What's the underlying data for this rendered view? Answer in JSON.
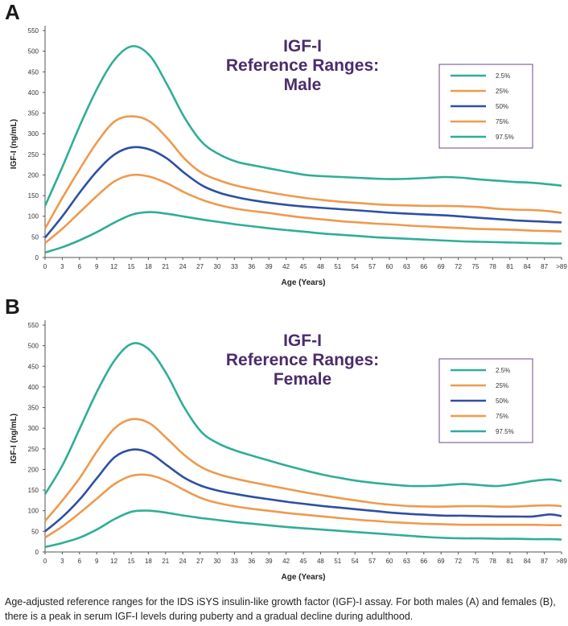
{
  "chart_data": [
    {
      "panel_label": "A",
      "type": "line",
      "title": [
        "IGF-I",
        "Reference Ranges:",
        "Male"
      ],
      "xlabel": "Age (Years)",
      "ylabel": "IGF-I (ng/mL)",
      "xlim": [
        0,
        89
      ],
      "ylim": [
        0,
        550
      ],
      "x_ticks": [
        "0",
        "3",
        "6",
        "9",
        "12",
        "15",
        "18",
        "21",
        "24",
        "27",
        "30",
        "33",
        "36",
        "39",
        "42",
        "45",
        "48",
        "51",
        "54",
        "57",
        "60",
        "63",
        "66",
        "69",
        "72",
        "75",
        "78",
        "81",
        "84",
        "87",
        ">89"
      ],
      "y_ticks": [
        0,
        50,
        100,
        150,
        200,
        250,
        300,
        350,
        400,
        450,
        500,
        550
      ],
      "grid": false,
      "legend_position": "top-right",
      "series": [
        {
          "name": "2.5%",
          "color": "#2fae96",
          "x": [
            0,
            3,
            6,
            9,
            12,
            15,
            18,
            21,
            24,
            27,
            30,
            33,
            36,
            39,
            42,
            45,
            48,
            51,
            54,
            57,
            60,
            63,
            66,
            69,
            72,
            75,
            78,
            81,
            84,
            87,
            89
          ],
          "y": [
            12,
            25,
            42,
            62,
            85,
            104,
            110,
            106,
            99,
            92,
            86,
            80,
            75,
            70,
            66,
            62,
            58,
            55,
            52,
            49,
            47,
            45,
            43,
            41,
            39,
            38,
            37,
            36,
            35,
            34,
            34
          ]
        },
        {
          "name": "25%",
          "color": "#ee9a4d",
          "x": [
            0,
            3,
            6,
            9,
            12,
            15,
            18,
            21,
            24,
            27,
            30,
            33,
            36,
            39,
            42,
            45,
            48,
            51,
            54,
            57,
            60,
            63,
            66,
            69,
            72,
            75,
            78,
            81,
            84,
            87,
            89
          ],
          "y": [
            35,
            70,
            110,
            150,
            185,
            200,
            196,
            180,
            158,
            140,
            127,
            118,
            112,
            107,
            101,
            96,
            92,
            88,
            85,
            82,
            80,
            77,
            75,
            73,
            71,
            69,
            68,
            67,
            65,
            64,
            63
          ]
        },
        {
          "name": "50%",
          "color": "#2e4fa3",
          "x": [
            0,
            3,
            6,
            9,
            12,
            15,
            18,
            21,
            24,
            27,
            30,
            33,
            36,
            39,
            42,
            45,
            48,
            51,
            54,
            57,
            60,
            63,
            66,
            69,
            72,
            75,
            78,
            81,
            84,
            87,
            89
          ],
          "y": [
            48,
            100,
            158,
            210,
            250,
            267,
            262,
            240,
            205,
            175,
            157,
            146,
            138,
            132,
            127,
            123,
            120,
            117,
            114,
            111,
            108,
            106,
            104,
            102,
            99,
            96,
            93,
            90,
            88,
            86,
            85
          ]
        },
        {
          "name": "75%",
          "color": "#ee9a4d",
          "x": [
            0,
            3,
            6,
            9,
            12,
            15,
            18,
            21,
            24,
            27,
            30,
            33,
            36,
            39,
            42,
            45,
            48,
            51,
            54,
            57,
            60,
            63,
            66,
            69,
            72,
            75,
            78,
            81,
            84,
            87,
            89
          ],
          "y": [
            70,
            145,
            215,
            280,
            330,
            342,
            330,
            290,
            240,
            205,
            187,
            174,
            165,
            157,
            150,
            144,
            139,
            135,
            132,
            129,
            127,
            126,
            125,
            125,
            124,
            122,
            118,
            116,
            115,
            112,
            108
          ]
        },
        {
          "name": "97.5%",
          "color": "#2fae96",
          "x": [
            0,
            3,
            6,
            9,
            12,
            15,
            18,
            21,
            24,
            27,
            30,
            33,
            36,
            39,
            42,
            45,
            48,
            51,
            54,
            57,
            60,
            63,
            66,
            69,
            72,
            75,
            78,
            81,
            84,
            87,
            89
          ],
          "y": [
            125,
            220,
            320,
            410,
            480,
            512,
            490,
            420,
            340,
            280,
            250,
            232,
            223,
            215,
            207,
            200,
            197,
            195,
            193,
            191,
            190,
            191,
            193,
            195,
            193,
            189,
            186,
            183,
            181,
            177,
            174
          ]
        }
      ]
    },
    {
      "panel_label": "B",
      "type": "line",
      "title": [
        "IGF-I",
        "Reference Ranges:",
        "Female"
      ],
      "xlabel": "Age (Years)",
      "ylabel": "IGF-I (ng/mL)",
      "xlim": [
        0,
        89
      ],
      "ylim": [
        0,
        550
      ],
      "x_ticks": [
        "0",
        "3",
        "6",
        "9",
        "12",
        "15",
        "18",
        "21",
        "24",
        "27",
        "30",
        "33",
        "36",
        "39",
        "42",
        "45",
        "48",
        "51",
        "54",
        "57",
        "60",
        "63",
        "66",
        "69",
        "72",
        "75",
        "78",
        "81",
        "84",
        "87",
        ">89"
      ],
      "y_ticks": [
        0,
        50,
        100,
        150,
        200,
        250,
        300,
        350,
        400,
        450,
        500,
        550
      ],
      "grid": false,
      "legend_position": "top-right",
      "series": [
        {
          "name": "2.5%",
          "color": "#2fae96",
          "x": [
            0,
            3,
            6,
            9,
            12,
            15,
            18,
            21,
            24,
            27,
            30,
            33,
            36,
            39,
            42,
            45,
            48,
            51,
            54,
            57,
            60,
            63,
            66,
            69,
            72,
            75,
            78,
            81,
            84,
            87,
            89
          ],
          "y": [
            12,
            22,
            35,
            55,
            80,
            98,
            100,
            95,
            88,
            82,
            77,
            72,
            68,
            64,
            60,
            57,
            54,
            51,
            48,
            45,
            42,
            39,
            36,
            34,
            33,
            33,
            32,
            32,
            31,
            31,
            30
          ]
        },
        {
          "name": "25%",
          "color": "#ee9a4d",
          "x": [
            0,
            3,
            6,
            9,
            12,
            15,
            18,
            21,
            24,
            27,
            30,
            33,
            36,
            39,
            42,
            45,
            48,
            51,
            54,
            57,
            60,
            63,
            66,
            69,
            72,
            75,
            78,
            81,
            84,
            87,
            89
          ],
          "y": [
            35,
            62,
            95,
            130,
            165,
            185,
            186,
            172,
            150,
            130,
            118,
            110,
            104,
            99,
            94,
            90,
            86,
            82,
            78,
            75,
            72,
            70,
            68,
            67,
            66,
            66,
            66,
            66,
            66,
            65,
            65
          ]
        },
        {
          "name": "50%",
          "color": "#2e4fa3",
          "x": [
            0,
            3,
            6,
            9,
            12,
            15,
            18,
            21,
            24,
            27,
            30,
            33,
            36,
            39,
            42,
            45,
            48,
            51,
            54,
            57,
            60,
            63,
            66,
            69,
            72,
            75,
            78,
            81,
            84,
            87,
            89
          ],
          "y": [
            50,
            85,
            128,
            180,
            230,
            248,
            240,
            210,
            180,
            160,
            148,
            140,
            133,
            127,
            121,
            116,
            111,
            107,
            103,
            99,
            95,
            92,
            90,
            88,
            88,
            87,
            86,
            86,
            86,
            91,
            87
          ]
        },
        {
          "name": "75%",
          "color": "#ee9a4d",
          "x": [
            0,
            3,
            6,
            9,
            12,
            15,
            18,
            21,
            24,
            27,
            30,
            33,
            36,
            39,
            42,
            45,
            48,
            51,
            54,
            57,
            60,
            63,
            66,
            69,
            72,
            75,
            78,
            81,
            84,
            87,
            89
          ],
          "y": [
            75,
            125,
            180,
            245,
            300,
            322,
            312,
            275,
            235,
            205,
            188,
            177,
            168,
            160,
            152,
            144,
            137,
            130,
            124,
            118,
            114,
            111,
            110,
            110,
            111,
            111,
            110,
            110,
            112,
            113,
            111
          ]
        },
        {
          "name": "97.5%",
          "color": "#2fae96",
          "x": [
            0,
            3,
            6,
            9,
            12,
            15,
            18,
            21,
            24,
            27,
            30,
            33,
            36,
            39,
            42,
            45,
            48,
            51,
            54,
            57,
            60,
            63,
            66,
            69,
            72,
            75,
            78,
            81,
            84,
            87,
            89
          ],
          "y": [
            140,
            210,
            300,
            390,
            465,
            505,
            490,
            430,
            350,
            290,
            262,
            245,
            232,
            220,
            208,
            197,
            187,
            179,
            172,
            167,
            163,
            160,
            160,
            162,
            165,
            162,
            160,
            165,
            172,
            176,
            172
          ]
        }
      ]
    }
  ],
  "caption": "Age-adjusted reference ranges for the IDS iSYS insulin-like growth factor (IGF)-I assay. For both males (A) and females (B), there is a peak in serum IGF-I levels during puberty and a gradual decline during adulthood."
}
